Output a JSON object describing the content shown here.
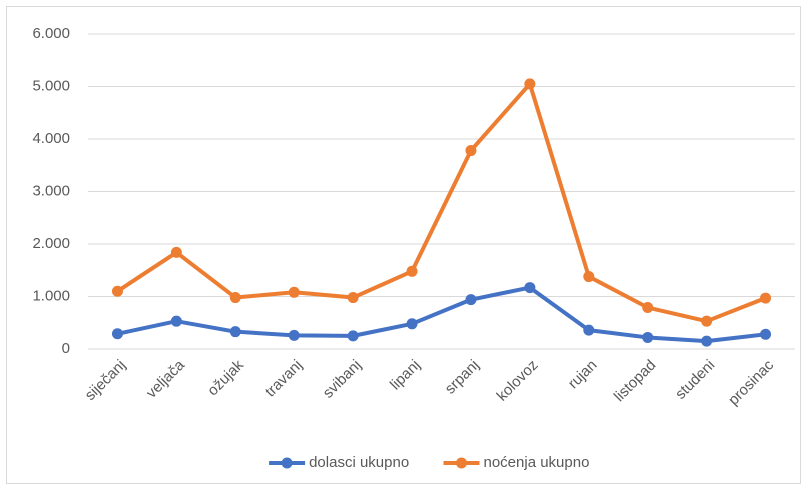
{
  "chart_data": {
    "type": "line",
    "categories": [
      "siječanj",
      "veljača",
      "ožujak",
      "travanj",
      "svibanj",
      "lipanj",
      "srpanj",
      "kolovoz",
      "rujan",
      "listopad",
      "studeni",
      "prosinac"
    ],
    "series": [
      {
        "name": "dolasci ukupno",
        "color": "#4472c4",
        "values": [
          290,
          530,
          330,
          260,
          250,
          480,
          940,
          1170,
          360,
          220,
          150,
          280
        ]
      },
      {
        "name": "noćenja ukupno",
        "color": "#ed7d31",
        "values": [
          1100,
          1840,
          980,
          1080,
          980,
          1480,
          3780,
          5050,
          1380,
          790,
          530,
          970
        ]
      }
    ],
    "ylim": [
      0,
      6000
    ],
    "yticks": [
      0,
      {
        "value": 1000,
        "label": "1.000"
      },
      {
        "value": 2000,
        "label": "2.000"
      },
      {
        "value": 3000,
        "label": "3.000"
      },
      {
        "value": 4000,
        "label": "4.000"
      },
      {
        "value": 5000,
        "label": "5.000"
      },
      {
        "value": 6000,
        "label": "6.000"
      }
    ],
    "grid": true,
    "legend": "bottom"
  }
}
